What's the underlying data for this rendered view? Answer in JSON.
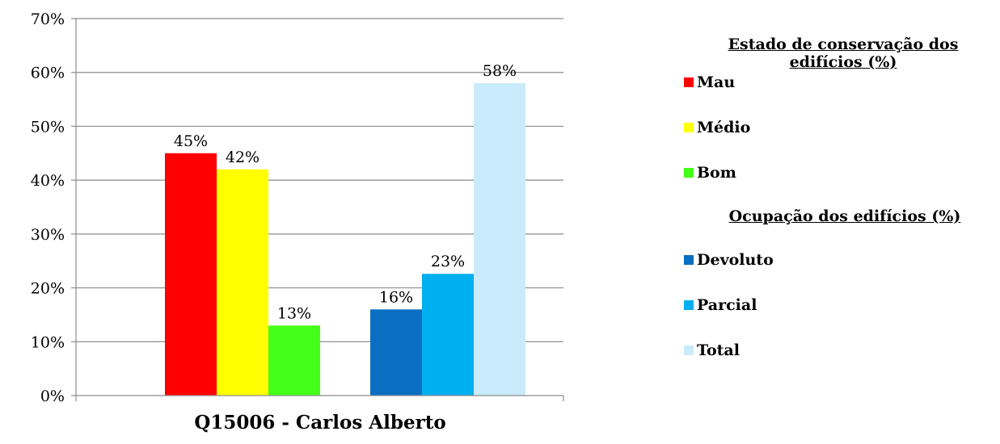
{
  "chart_data": {
    "type": "bar",
    "categories": [
      "Q15006 - Carlos Alberto"
    ],
    "xlabel": "Q15006 - Carlos Alberto",
    "ylim": [
      0,
      70
    ],
    "yticks": [
      "0%",
      "10%",
      "20%",
      "30%",
      "40%",
      "50%",
      "60%",
      "70%"
    ],
    "grid": true,
    "legend_position": "right",
    "groups": [
      {
        "name": "Estado de conservação dos edifícios (%)",
        "series": [
          {
            "name": "Mau",
            "value": 45,
            "label": "45%",
            "color": "#ff0000"
          },
          {
            "name": "Médio",
            "value": 42,
            "label": "42%",
            "color": "#ffff00"
          },
          {
            "name": "Bom",
            "value": 13,
            "label": "13%",
            "color": "#44ff1a"
          }
        ]
      },
      {
        "name": "Ocupação dos edifícios (%)",
        "series": [
          {
            "name": "Devoluto",
            "value": 16,
            "label": "16%",
            "color": "#0a6fc2"
          },
          {
            "name": "Parcial",
            "value": 22.6,
            "label": "23%",
            "color": "#00aff0"
          },
          {
            "name": "Total",
            "value": 58,
            "label": "58%",
            "color": "#c9ebfb"
          }
        ]
      }
    ]
  }
}
